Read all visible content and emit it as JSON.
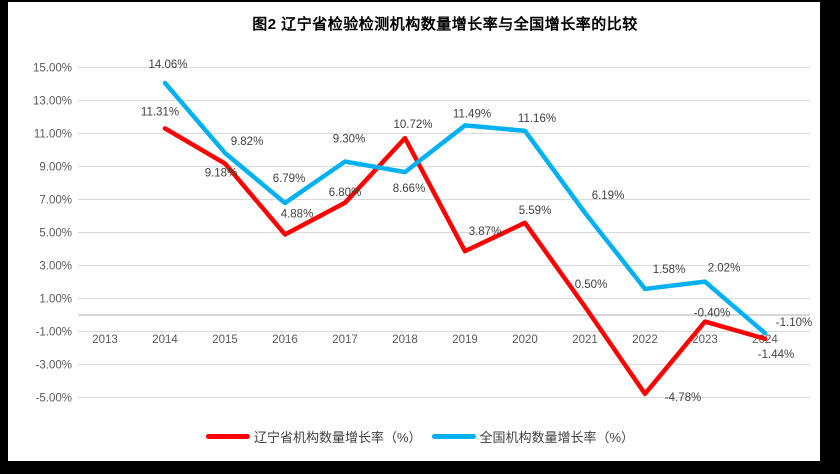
{
  "page": {
    "frame_color": "#000000",
    "paper_color": "#ffffff"
  },
  "chart_data": {
    "type": "line",
    "title": "图2 辽宁省检验检测机构数量增长率与全国增长率的比较",
    "categories": [
      "2013",
      "2014",
      "2015",
      "2016",
      "2017",
      "2018",
      "2019",
      "2020",
      "2021",
      "2022",
      "2023",
      "2024"
    ],
    "xlabel": "",
    "ylabel": "",
    "ylim": [
      -5,
      15
    ],
    "grid": true,
    "legend_position": "bottom",
    "colors": {
      "grid_line": "#d9d9d9",
      "zero_axis_line": "#bfbfbf",
      "axis_tick_text": "#595959",
      "data_label_text": "#404040"
    },
    "y_axis": {
      "ticks": [
        {
          "value": 15,
          "label": "15.00%"
        },
        {
          "value": 13,
          "label": "13.00%"
        },
        {
          "value": 11,
          "label": "11.00%"
        },
        {
          "value": 9,
          "label": "9.00%"
        },
        {
          "value": 7,
          "label": "7.00%"
        },
        {
          "value": 5,
          "label": "5.00%"
        },
        {
          "value": 3,
          "label": "3.00%"
        },
        {
          "value": 1,
          "label": "1.00%"
        },
        {
          "value": -1,
          "label": "-1.00%"
        },
        {
          "value": -3,
          "label": "-3.00%"
        },
        {
          "value": -5,
          "label": "-5.00%"
        }
      ]
    },
    "series": [
      {
        "name": "辽宁省机构数量增长率（%）",
        "color": "#ff0000",
        "start_index": 1,
        "values": [
          11.31,
          9.18,
          4.88,
          6.8,
          10.72,
          3.87,
          5.59,
          0.5,
          -4.78,
          -0.4,
          -1.44
        ],
        "labels": [
          "11.31%",
          "9.18%",
          "4.88%",
          "6.80%",
          "10.72%",
          "3.87%",
          "5.59%",
          "0.50%",
          "-4.78%",
          "-0.40%",
          "-1.44%"
        ],
        "label_offsets": [
          [
            -5,
            -13
          ],
          [
            -4,
            13
          ],
          [
            12,
            -17
          ],
          [
            0,
            -7
          ],
          [
            8,
            -10
          ],
          [
            20,
            -16
          ],
          [
            10,
            -9
          ],
          [
            6,
            -19
          ],
          [
            38,
            7
          ],
          [
            7,
            -5
          ],
          [
            11,
            19
          ]
        ]
      },
      {
        "name": "全国机构数量增长率（%）",
        "color": "#00b0f0",
        "start_index": 1,
        "values": [
          14.06,
          9.82,
          6.79,
          9.3,
          8.66,
          11.49,
          11.16,
          6.19,
          1.58,
          2.02,
          -1.1
        ],
        "labels": [
          "14.06%",
          "9.82%",
          "6.79%",
          "9.30%",
          "8.66%",
          "11.49%",
          "11.16%",
          "6.19%",
          "1.58%",
          "2.02%",
          "-1.10%"
        ],
        "label_offsets": [
          [
            3,
            -15
          ],
          [
            22,
            -8
          ],
          [
            4,
            -21
          ],
          [
            4,
            -19
          ],
          [
            4,
            20
          ],
          [
            7,
            -8
          ],
          [
            12,
            -9
          ],
          [
            23,
            -14
          ],
          [
            24,
            -16
          ],
          [
            19,
            -10
          ],
          [
            29,
            -7
          ]
        ]
      }
    ]
  }
}
